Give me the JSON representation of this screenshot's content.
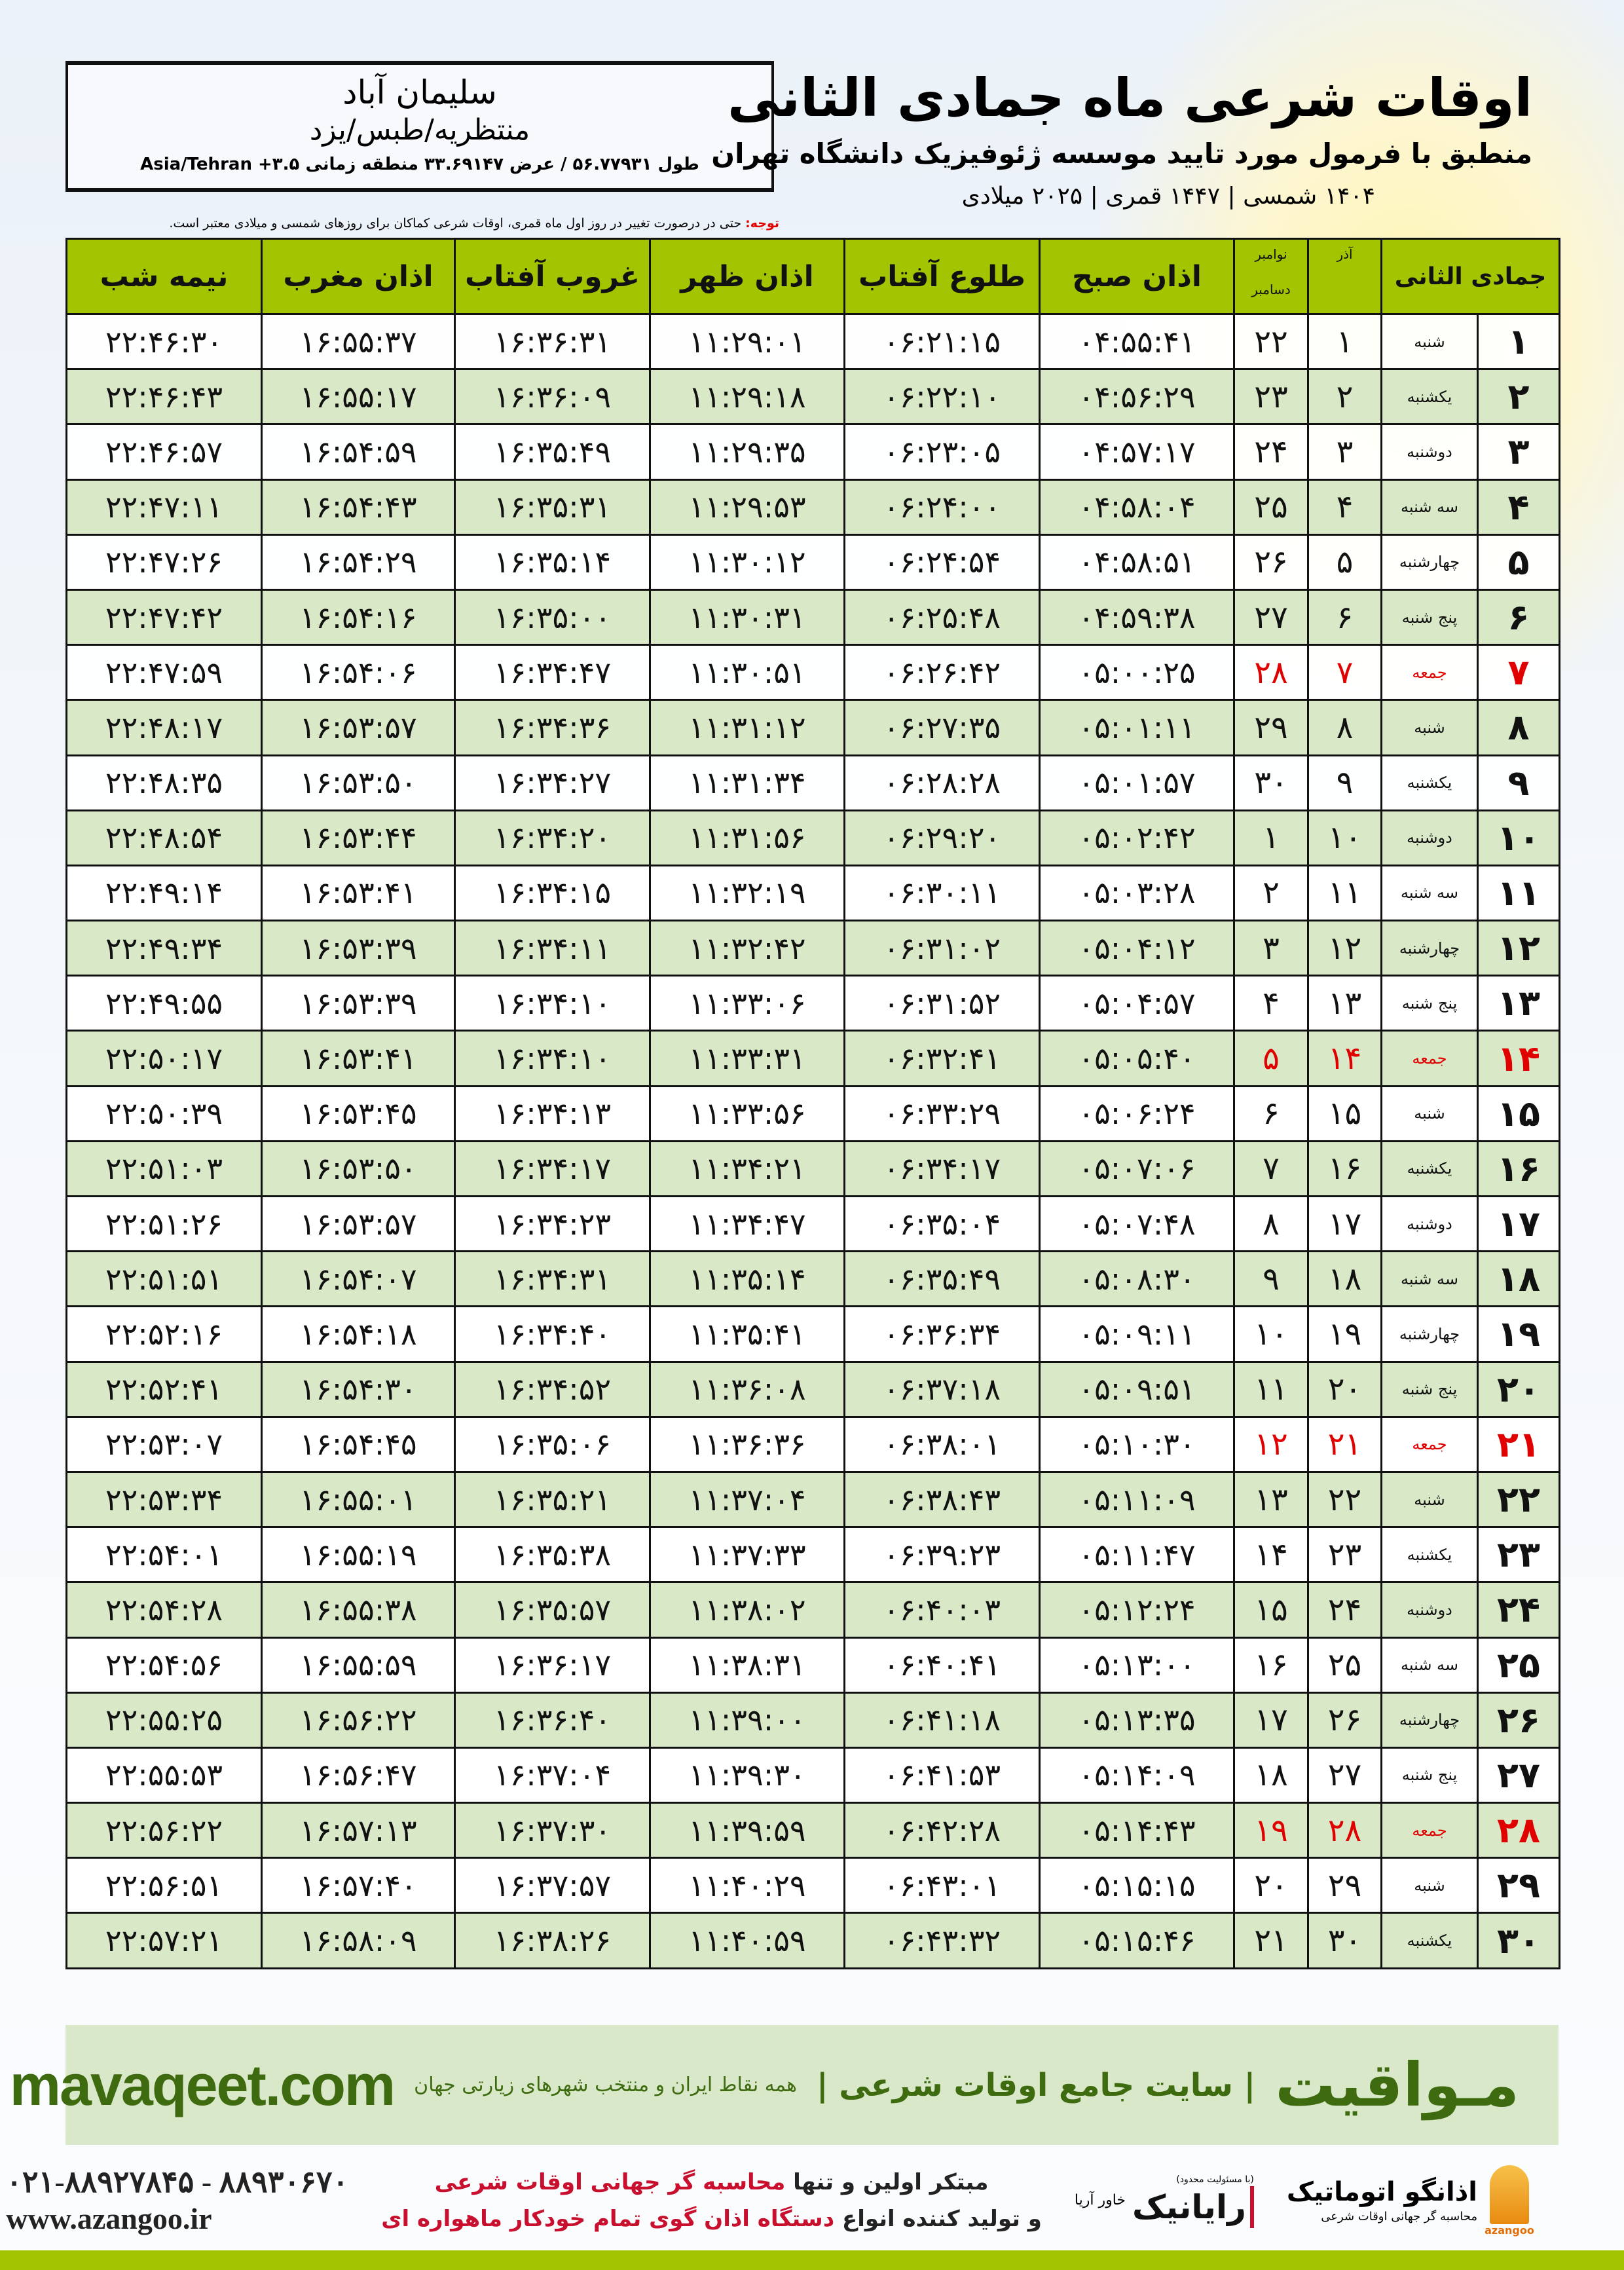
{
  "header": {
    "title": "اوقات شرعی ماه جمادی الثانی",
    "subtitle": "منطبق با فرمول مورد تایید موسسه ژئوفیزیک دانشگاه تهران",
    "dateline": "۱۴۰۴ شمسی | ۱۴۴۷ قمری | ۲۰۲۵ میلادی"
  },
  "location": {
    "city": "سلیمان آباد",
    "region": "منتظریه/طبس/یزد",
    "coords": "طول ۵۶.۷۷۹۳۱ / عرض ۳۳.۶۹۱۴۷ منطقه زمانی ۳.۵+ Asia/Tehran"
  },
  "note": {
    "label": "توجه:",
    "text": " حتی در درصورت تغییر در روز اول ماه قمری، اوقات شرعی کماکان برای روزهای شمسی و میلادی معتبر است."
  },
  "table": {
    "columns": {
      "hijri": "جمادی الثانی",
      "azar": "آذر",
      "greg_top": "نوامبر",
      "greg_bottom": "دسامبر",
      "fajr": "اذان صبح",
      "sunrise": "طلوع آفتاب",
      "dhuhr": "اذان ظهر",
      "sunset": "غروب آفتاب",
      "maghrib": "اذان مغرب",
      "midnight": "نیمه شب"
    },
    "holiday_color": "#e00000",
    "header_color": "#a3c400",
    "rows": [
      {
        "hijri": "۱",
        "weekday": "شنبه",
        "azar": "۱",
        "greg": "۲۲",
        "fajr": "۰۴:۵۵:۴۱",
        "sunrise": "۰۶:۲۱:۱۵",
        "dhuhr": "۱۱:۲۹:۰۱",
        "sunset": "۱۶:۳۶:۳۱",
        "maghrib": "۱۶:۵۵:۳۷",
        "midnight": "۲۲:۴۶:۳۰",
        "holiday": false
      },
      {
        "hijri": "۲",
        "weekday": "یکشنبه",
        "azar": "۲",
        "greg": "۲۳",
        "fajr": "۰۴:۵۶:۲۹",
        "sunrise": "۰۶:۲۲:۱۰",
        "dhuhr": "۱۱:۲۹:۱۸",
        "sunset": "۱۶:۳۶:۰۹",
        "maghrib": "۱۶:۵۵:۱۷",
        "midnight": "۲۲:۴۶:۴۳",
        "holiday": false
      },
      {
        "hijri": "۳",
        "weekday": "دوشنبه",
        "azar": "۳",
        "greg": "۲۴",
        "fajr": "۰۴:۵۷:۱۷",
        "sunrise": "۰۶:۲۳:۰۵",
        "dhuhr": "۱۱:۲۹:۳۵",
        "sunset": "۱۶:۳۵:۴۹",
        "maghrib": "۱۶:۵۴:۵۹",
        "midnight": "۲۲:۴۶:۵۷",
        "holiday": false
      },
      {
        "hijri": "۴",
        "weekday": "سه شنبه",
        "azar": "۴",
        "greg": "۲۵",
        "fajr": "۰۴:۵۸:۰۴",
        "sunrise": "۰۶:۲۴:۰۰",
        "dhuhr": "۱۱:۲۹:۵۳",
        "sunset": "۱۶:۳۵:۳۱",
        "maghrib": "۱۶:۵۴:۴۳",
        "midnight": "۲۲:۴۷:۱۱",
        "holiday": false
      },
      {
        "hijri": "۵",
        "weekday": "چهارشنبه",
        "azar": "۵",
        "greg": "۲۶",
        "fajr": "۰۴:۵۸:۵۱",
        "sunrise": "۰۶:۲۴:۵۴",
        "dhuhr": "۱۱:۳۰:۱۲",
        "sunset": "۱۶:۳۵:۱۴",
        "maghrib": "۱۶:۵۴:۲۹",
        "midnight": "۲۲:۴۷:۲۶",
        "holiday": false
      },
      {
        "hijri": "۶",
        "weekday": "پنج شنبه",
        "azar": "۶",
        "greg": "۲۷",
        "fajr": "۰۴:۵۹:۳۸",
        "sunrise": "۰۶:۲۵:۴۸",
        "dhuhr": "۱۱:۳۰:۳۱",
        "sunset": "۱۶:۳۵:۰۰",
        "maghrib": "۱۶:۵۴:۱۶",
        "midnight": "۲۲:۴۷:۴۲",
        "holiday": false
      },
      {
        "hijri": "۷",
        "weekday": "جمعه",
        "azar": "۷",
        "greg": "۲۸",
        "fajr": "۰۵:۰۰:۲۵",
        "sunrise": "۰۶:۲۶:۴۲",
        "dhuhr": "۱۱:۳۰:۵۱",
        "sunset": "۱۶:۳۴:۴۷",
        "maghrib": "۱۶:۵۴:۰۶",
        "midnight": "۲۲:۴۷:۵۹",
        "holiday": true
      },
      {
        "hijri": "۸",
        "weekday": "شنبه",
        "azar": "۸",
        "greg": "۲۹",
        "fajr": "۰۵:۰۱:۱۱",
        "sunrise": "۰۶:۲۷:۳۵",
        "dhuhr": "۱۱:۳۱:۱۲",
        "sunset": "۱۶:۳۴:۳۶",
        "maghrib": "۱۶:۵۳:۵۷",
        "midnight": "۲۲:۴۸:۱۷",
        "holiday": false
      },
      {
        "hijri": "۹",
        "weekday": "یکشنبه",
        "azar": "۹",
        "greg": "۳۰",
        "fajr": "۰۵:۰۱:۵۷",
        "sunrise": "۰۶:۲۸:۲۸",
        "dhuhr": "۱۱:۳۱:۳۴",
        "sunset": "۱۶:۳۴:۲۷",
        "maghrib": "۱۶:۵۳:۵۰",
        "midnight": "۲۲:۴۸:۳۵",
        "holiday": false
      },
      {
        "hijri": "۱۰",
        "weekday": "دوشنبه",
        "azar": "۱۰",
        "greg": "۱",
        "fajr": "۰۵:۰۲:۴۲",
        "sunrise": "۰۶:۲۹:۲۰",
        "dhuhr": "۱۱:۳۱:۵۶",
        "sunset": "۱۶:۳۴:۲۰",
        "maghrib": "۱۶:۵۳:۴۴",
        "midnight": "۲۲:۴۸:۵۴",
        "holiday": false
      },
      {
        "hijri": "۱۱",
        "weekday": "سه شنبه",
        "azar": "۱۱",
        "greg": "۲",
        "fajr": "۰۵:۰۳:۲۸",
        "sunrise": "۰۶:۳۰:۱۱",
        "dhuhr": "۱۱:۳۲:۱۹",
        "sunset": "۱۶:۳۴:۱۵",
        "maghrib": "۱۶:۵۳:۴۱",
        "midnight": "۲۲:۴۹:۱۴",
        "holiday": false
      },
      {
        "hijri": "۱۲",
        "weekday": "چهارشنبه",
        "azar": "۱۲",
        "greg": "۳",
        "fajr": "۰۵:۰۴:۱۲",
        "sunrise": "۰۶:۳۱:۰۲",
        "dhuhr": "۱۱:۳۲:۴۲",
        "sunset": "۱۶:۳۴:۱۱",
        "maghrib": "۱۶:۵۳:۳۹",
        "midnight": "۲۲:۴۹:۳۴",
        "holiday": false
      },
      {
        "hijri": "۱۳",
        "weekday": "پنج شنبه",
        "azar": "۱۳",
        "greg": "۴",
        "fajr": "۰۵:۰۴:۵۷",
        "sunrise": "۰۶:۳۱:۵۲",
        "dhuhr": "۱۱:۳۳:۰۶",
        "sunset": "۱۶:۳۴:۱۰",
        "maghrib": "۱۶:۵۳:۳۹",
        "midnight": "۲۲:۴۹:۵۵",
        "holiday": false
      },
      {
        "hijri": "۱۴",
        "weekday": "جمعه",
        "azar": "۱۴",
        "greg": "۵",
        "fajr": "۰۵:۰۵:۴۰",
        "sunrise": "۰۶:۳۲:۴۱",
        "dhuhr": "۱۱:۳۳:۳۱",
        "sunset": "۱۶:۳۴:۱۰",
        "maghrib": "۱۶:۵۳:۴۱",
        "midnight": "۲۲:۵۰:۱۷",
        "holiday": true
      },
      {
        "hijri": "۱۵",
        "weekday": "شنبه",
        "azar": "۱۵",
        "greg": "۶",
        "fajr": "۰۵:۰۶:۲۴",
        "sunrise": "۰۶:۳۳:۲۹",
        "dhuhr": "۱۱:۳۳:۵۶",
        "sunset": "۱۶:۳۴:۱۳",
        "maghrib": "۱۶:۵۳:۴۵",
        "midnight": "۲۲:۵۰:۳۹",
        "holiday": false
      },
      {
        "hijri": "۱۶",
        "weekday": "یکشنبه",
        "azar": "۱۶",
        "greg": "۷",
        "fajr": "۰۵:۰۷:۰۶",
        "sunrise": "۰۶:۳۴:۱۷",
        "dhuhr": "۱۱:۳۴:۲۱",
        "sunset": "۱۶:۳۴:۱۷",
        "maghrib": "۱۶:۵۳:۵۰",
        "midnight": "۲۲:۵۱:۰۳",
        "holiday": false
      },
      {
        "hijri": "۱۷",
        "weekday": "دوشنبه",
        "azar": "۱۷",
        "greg": "۸",
        "fajr": "۰۵:۰۷:۴۸",
        "sunrise": "۰۶:۳۵:۰۴",
        "dhuhr": "۱۱:۳۴:۴۷",
        "sunset": "۱۶:۳۴:۲۳",
        "maghrib": "۱۶:۵۳:۵۷",
        "midnight": "۲۲:۵۱:۲۶",
        "holiday": false
      },
      {
        "hijri": "۱۸",
        "weekday": "سه شنبه",
        "azar": "۱۸",
        "greg": "۹",
        "fajr": "۰۵:۰۸:۳۰",
        "sunrise": "۰۶:۳۵:۴۹",
        "dhuhr": "۱۱:۳۵:۱۴",
        "sunset": "۱۶:۳۴:۳۱",
        "maghrib": "۱۶:۵۴:۰۷",
        "midnight": "۲۲:۵۱:۵۱",
        "holiday": false
      },
      {
        "hijri": "۱۹",
        "weekday": "چهارشنبه",
        "azar": "۱۹",
        "greg": "۱۰",
        "fajr": "۰۵:۰۹:۱۱",
        "sunrise": "۰۶:۳۶:۳۴",
        "dhuhr": "۱۱:۳۵:۴۱",
        "sunset": "۱۶:۳۴:۴۰",
        "maghrib": "۱۶:۵۴:۱۸",
        "midnight": "۲۲:۵۲:۱۶",
        "holiday": false
      },
      {
        "hijri": "۲۰",
        "weekday": "پنج شنبه",
        "azar": "۲۰",
        "greg": "۱۱",
        "fajr": "۰۵:۰۹:۵۱",
        "sunrise": "۰۶:۳۷:۱۸",
        "dhuhr": "۱۱:۳۶:۰۸",
        "sunset": "۱۶:۳۴:۵۲",
        "maghrib": "۱۶:۵۴:۳۰",
        "midnight": "۲۲:۵۲:۴۱",
        "holiday": false
      },
      {
        "hijri": "۲۱",
        "weekday": "جمعه",
        "azar": "۲۱",
        "greg": "۱۲",
        "fajr": "۰۵:۱۰:۳۰",
        "sunrise": "۰۶:۳۸:۰۱",
        "dhuhr": "۱۱:۳۶:۳۶",
        "sunset": "۱۶:۳۵:۰۶",
        "maghrib": "۱۶:۵۴:۴۵",
        "midnight": "۲۲:۵۳:۰۷",
        "holiday": true
      },
      {
        "hijri": "۲۲",
        "weekday": "شنبه",
        "azar": "۲۲",
        "greg": "۱۳",
        "fajr": "۰۵:۱۱:۰۹",
        "sunrise": "۰۶:۳۸:۴۳",
        "dhuhr": "۱۱:۳۷:۰۴",
        "sunset": "۱۶:۳۵:۲۱",
        "maghrib": "۱۶:۵۵:۰۱",
        "midnight": "۲۲:۵۳:۳۴",
        "holiday": false
      },
      {
        "hijri": "۲۳",
        "weekday": "یکشنبه",
        "azar": "۲۳",
        "greg": "۱۴",
        "fajr": "۰۵:۱۱:۴۷",
        "sunrise": "۰۶:۳۹:۲۳",
        "dhuhr": "۱۱:۳۷:۳۳",
        "sunset": "۱۶:۳۵:۳۸",
        "maghrib": "۱۶:۵۵:۱۹",
        "midnight": "۲۲:۵۴:۰۱",
        "holiday": false
      },
      {
        "hijri": "۲۴",
        "weekday": "دوشنبه",
        "azar": "۲۴",
        "greg": "۱۵",
        "fajr": "۰۵:۱۲:۲۴",
        "sunrise": "۰۶:۴۰:۰۳",
        "dhuhr": "۱۱:۳۸:۰۲",
        "sunset": "۱۶:۳۵:۵۷",
        "maghrib": "۱۶:۵۵:۳۸",
        "midnight": "۲۲:۵۴:۲۸",
        "holiday": false
      },
      {
        "hijri": "۲۵",
        "weekday": "سه شنبه",
        "azar": "۲۵",
        "greg": "۱۶",
        "fajr": "۰۵:۱۳:۰۰",
        "sunrise": "۰۶:۴۰:۴۱",
        "dhuhr": "۱۱:۳۸:۳۱",
        "sunset": "۱۶:۳۶:۱۷",
        "maghrib": "۱۶:۵۵:۵۹",
        "midnight": "۲۲:۵۴:۵۶",
        "holiday": false
      },
      {
        "hijri": "۲۶",
        "weekday": "چهارشنبه",
        "azar": "۲۶",
        "greg": "۱۷",
        "fajr": "۰۵:۱۳:۳۵",
        "sunrise": "۰۶:۴۱:۱۸",
        "dhuhr": "۱۱:۳۹:۰۰",
        "sunset": "۱۶:۳۶:۴۰",
        "maghrib": "۱۶:۵۶:۲۲",
        "midnight": "۲۲:۵۵:۲۵",
        "holiday": false
      },
      {
        "hijri": "۲۷",
        "weekday": "پنج شنبه",
        "azar": "۲۷",
        "greg": "۱۸",
        "fajr": "۰۵:۱۴:۰۹",
        "sunrise": "۰۶:۴۱:۵۳",
        "dhuhr": "۱۱:۳۹:۳۰",
        "sunset": "۱۶:۳۷:۰۴",
        "maghrib": "۱۶:۵۶:۴۷",
        "midnight": "۲۲:۵۵:۵۳",
        "holiday": false
      },
      {
        "hijri": "۲۸",
        "weekday": "جمعه",
        "azar": "۲۸",
        "greg": "۱۹",
        "fajr": "۰۵:۱۴:۴۳",
        "sunrise": "۰۶:۴۲:۲۸",
        "dhuhr": "۱۱:۳۹:۵۹",
        "sunset": "۱۶:۳۷:۳۰",
        "maghrib": "۱۶:۵۷:۱۳",
        "midnight": "۲۲:۵۶:۲۲",
        "holiday": true
      },
      {
        "hijri": "۲۹",
        "weekday": "شنبه",
        "azar": "۲۹",
        "greg": "۲۰",
        "fajr": "۰۵:۱۵:۱۵",
        "sunrise": "۰۶:۴۳:۰۱",
        "dhuhr": "۱۱:۴۰:۲۹",
        "sunset": "۱۶:۳۷:۵۷",
        "maghrib": "۱۶:۵۷:۴۰",
        "midnight": "۲۲:۵۶:۵۱",
        "holiday": false
      },
      {
        "hijri": "۳۰",
        "weekday": "یکشنبه",
        "azar": "۳۰",
        "greg": "۲۱",
        "fajr": "۰۵:۱۵:۴۶",
        "sunrise": "۰۶:۴۳:۳۲",
        "dhuhr": "۱۱:۴۰:۵۹",
        "sunset": "۱۶:۳۸:۲۶",
        "maghrib": "۱۶:۵۸:۰۹",
        "midnight": "۲۲:۵۷:۲۱",
        "holiday": false
      }
    ]
  },
  "promo": {
    "brand": "مـواقیت",
    "slogan": "| سایت جامع اوقات شرعی |",
    "sub": "همه نقاط ایران و منتخب شهرهای زیارتی جهان",
    "site": "mavaqeet.com",
    "color": "#3f6b10"
  },
  "footer": {
    "phones": "۰۲۱-۸۸۹۲۷۸۴۵ - ۸۸۹۳۰۶۷۰",
    "website": "www.azangoo.ir",
    "ad_line1_a": "مبتکر اولین و تنها ",
    "ad_line1_b": "محاسبه گر جهانی اوقات شرعی",
    "ad_line2_a": "و تولید کننده انواع ",
    "ad_line2_b": "دستگاه اذان گوی تمام خودکار ماهواره ای",
    "logo1_name": "رایانیک",
    "logo1_small": "خاور آریا",
    "logo1_tag": "(با مسئولیت محدود)",
    "logo2_name": "اذانگو اتوماتیک",
    "logo2_tag": "محاسبه گر جهانی اوقات شرعی",
    "logo2_word": "azangoo",
    "accent": "#c8102e"
  }
}
